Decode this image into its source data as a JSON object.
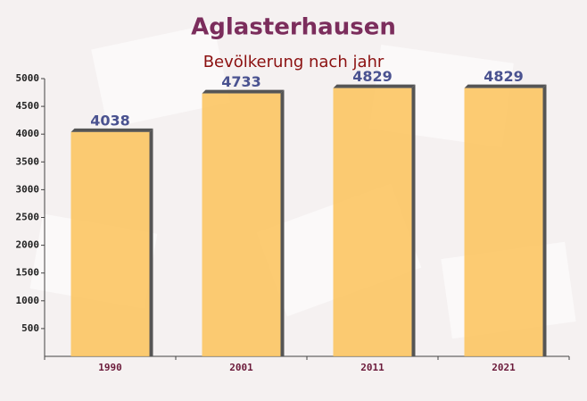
{
  "chart_data": {
    "type": "bar",
    "title": "Aglasterhausen",
    "subtitle": "Bevölkerung nach jahr",
    "categories": [
      "1990",
      "2001",
      "2011",
      "2021"
    ],
    "values": [
      4038,
      4733,
      4829,
      4829
    ],
    "color": "#fcc35a",
    "ylim": [
      0,
      5000
    ],
    "yticks": [
      500,
      1000,
      1500,
      2000,
      2500,
      3000,
      3500,
      4000,
      4500,
      5000
    ]
  }
}
